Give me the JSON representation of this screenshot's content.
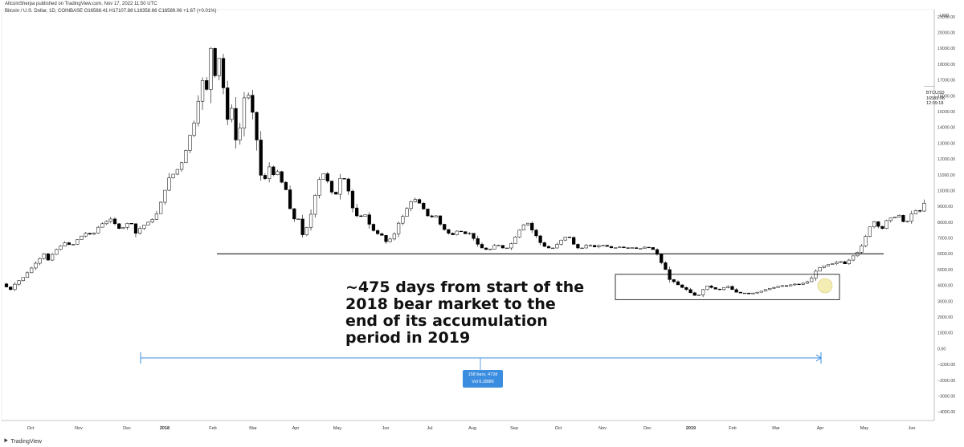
{
  "header": {
    "publisher": "AltcoinSherpa published on TradingView.com, Nov 17, 2022 11:50 UTC",
    "symbol_line": "Bitcoin / U.S. Dollar, 1D, COINBASE  O16588.41  H17107.88  L16358.66  C16589.06  +1.67 (+0.01%)"
  },
  "annotation": {
    "lines": [
      "~475 days from start of the",
      "2018 bear market to the",
      "end of its accumulation",
      "period in 2019"
    ]
  },
  "range_label": {
    "bars": "158 bars, 472d",
    "vol": "Vol 6.288M"
  },
  "price_tag": {
    "symbol": "BTCUSD",
    "price": "16589.06",
    "time": "12:09:18"
  },
  "footer": {
    "brand": "TradingView"
  },
  "colors": {
    "up": "#ffffff",
    "down": "#000000",
    "range": "#3b8de0",
    "highlight": "#f3eba6"
  },
  "chart_data": {
    "type": "candlestick",
    "title": "Bitcoin / U.S. Dollar, 1D, COINBASE",
    "currency_label": "USD",
    "ylim": [
      -4500,
      21500
    ],
    "y_ticks": [
      "21000.00",
      "20000.00",
      "19000.00",
      "18000.00",
      "17000.00",
      "16000.00",
      "15000.00",
      "14000.00",
      "13000.00",
      "12000.00",
      "11000.00",
      "10000.00",
      "9000.00",
      "8000.00",
      "7000.00",
      "6000.00",
      "5000.00",
      "4000.00",
      "3000.00",
      "2000.00",
      "1000.00",
      "0.00",
      "−1000.00",
      "−2000.00",
      "−3000.00",
      "−4000.00"
    ],
    "x_labels": [
      "Oct",
      "Nov",
      "Dec",
      "2018",
      "Feb",
      "Mar",
      "Apr",
      "May",
      "Jun",
      "Jul",
      "Aug",
      "Sep",
      "Oct",
      "Nov",
      "Dec",
      "2019",
      "Feb",
      "Mar",
      "Apr",
      "May",
      "Jun"
    ],
    "price_path": [
      [
        0,
        4100
      ],
      [
        3,
        3900
      ],
      [
        5,
        3600
      ],
      [
        8,
        4000
      ],
      [
        12,
        4300
      ],
      [
        15,
        4500
      ],
      [
        20,
        5000
      ],
      [
        25,
        5500
      ],
      [
        30,
        6000
      ],
      [
        33,
        5600
      ],
      [
        38,
        6200
      ],
      [
        45,
        6700
      ],
      [
        50,
        6500
      ],
      [
        55,
        7000
      ],
      [
        60,
        7300
      ],
      [
        65,
        7200
      ],
      [
        70,
        7800
      ],
      [
        78,
        8200
      ],
      [
        85,
        7500
      ],
      [
        92,
        8100
      ],
      [
        96,
        7300
      ],
      [
        100,
        7700
      ],
      [
        105,
        8000
      ],
      [
        110,
        8300
      ],
      [
        115,
        9500
      ],
      [
        120,
        10800
      ],
      [
        125,
        11200
      ],
      [
        130,
        11900
      ],
      [
        135,
        13500
      ],
      [
        140,
        14800
      ],
      [
        142,
        16500
      ],
      [
        145,
        17200
      ],
      [
        148,
        16000
      ],
      [
        150,
        19000
      ],
      [
        152,
        16500
      ],
      [
        155,
        18800
      ],
      [
        158,
        17500
      ],
      [
        160,
        15500
      ],
      [
        163,
        14000
      ],
      [
        166,
        15800
      ],
      [
        168,
        13200
      ],
      [
        172,
        14200
      ],
      [
        175,
        16700
      ],
      [
        178,
        15700
      ],
      [
        182,
        14200
      ],
      [
        185,
        11200
      ],
      [
        188,
        10500
      ],
      [
        192,
        11500
      ],
      [
        195,
        11000
      ],
      [
        198,
        11200
      ],
      [
        202,
        10300
      ],
      [
        206,
        9800
      ],
      [
        208,
        7900
      ],
      [
        212,
        8500
      ],
      [
        215,
        7600
      ],
      [
        217,
        6800
      ],
      [
        220,
        8100
      ],
      [
        223,
        8700
      ],
      [
        226,
        10200
      ],
      [
        230,
        11200
      ],
      [
        233,
        10800
      ],
      [
        236,
        10200
      ],
      [
        239,
        9300
      ],
      [
        242,
        10700
      ],
      [
        245,
        10900
      ],
      [
        248,
        10400
      ],
      [
        251,
        9100
      ],
      [
        254,
        8500
      ],
      [
        257,
        8200
      ],
      [
        260,
        8700
      ],
      [
        263,
        8000
      ],
      [
        266,
        7600
      ],
      [
        269,
        7200
      ],
      [
        272,
        7400
      ],
      [
        275,
        6700
      ],
      [
        278,
        6900
      ],
      [
        281,
        7000
      ],
      [
        284,
        7800
      ],
      [
        287,
        8200
      ],
      [
        290,
        8700
      ],
      [
        293,
        9200
      ],
      [
        296,
        9500
      ],
      [
        299,
        9300
      ],
      [
        302,
        9000
      ],
      [
        305,
        8500
      ],
      [
        308,
        8200
      ],
      [
        311,
        8600
      ],
      [
        314,
        8000
      ],
      [
        317,
        7600
      ],
      [
        320,
        7400
      ],
      [
        323,
        7100
      ],
      [
        326,
        7400
      ],
      [
        329,
        7500
      ],
      [
        332,
        7200
      ],
      [
        335,
        7400
      ],
      [
        338,
        7100
      ],
      [
        341,
        6700
      ],
      [
        344,
        6400
      ],
      [
        347,
        6300
      ],
      [
        350,
        6200
      ],
      [
        353,
        6500
      ],
      [
        356,
        6600
      ],
      [
        359,
        6400
      ],
      [
        362,
        6300
      ],
      [
        365,
        6500
      ],
      [
        368,
        6900
      ],
      [
        371,
        7400
      ],
      [
        374,
        7700
      ],
      [
        377,
        8100
      ],
      [
        380,
        7600
      ],
      [
        383,
        7300
      ],
      [
        386,
        6800
      ],
      [
        389,
        6500
      ],
      [
        392,
        6400
      ],
      [
        395,
        6300
      ],
      [
        398,
        6500
      ],
      [
        401,
        6800
      ],
      [
        404,
        7000
      ],
      [
        407,
        7200
      ],
      [
        410,
        6700
      ],
      [
        413,
        6400
      ],
      [
        416,
        6300
      ],
      [
        419,
        6500
      ],
      [
        422,
        6600
      ],
      [
        425,
        6400
      ],
      [
        428,
        6500
      ],
      [
        431,
        6550
      ],
      [
        434,
        6500
      ],
      [
        437,
        6400
      ],
      [
        440,
        6350
      ],
      [
        443,
        6450
      ],
      [
        446,
        6400
      ],
      [
        449,
        6350
      ],
      [
        452,
        6400
      ],
      [
        455,
        6350
      ],
      [
        458,
        6300
      ],
      [
        461,
        6400
      ],
      [
        464,
        6450
      ],
      [
        467,
        6300
      ],
      [
        470,
        6200
      ],
      [
        473,
        5500
      ],
      [
        476,
        5300
      ],
      [
        479,
        4400
      ],
      [
        482,
        4300
      ],
      [
        485,
        4100
      ],
      [
        488,
        3900
      ],
      [
        491,
        3800
      ],
      [
        494,
        3600
      ],
      [
        497,
        3400
      ],
      [
        500,
        3300
      ],
      [
        503,
        3600
      ],
      [
        506,
        4000
      ],
      [
        509,
        3900
      ],
      [
        512,
        3800
      ],
      [
        515,
        3700
      ],
      [
        518,
        3800
      ],
      [
        521,
        4000
      ],
      [
        524,
        3800
      ],
      [
        527,
        3600
      ],
      [
        530,
        3500
      ],
      [
        533,
        3550
      ],
      [
        536,
        3450
      ],
      [
        539,
        3500
      ],
      [
        542,
        3550
      ],
      [
        545,
        3600
      ],
      [
        548,
        3700
      ],
      [
        551,
        3800
      ],
      [
        554,
        3850
      ],
      [
        557,
        3900
      ],
      [
        560,
        4000
      ],
      [
        563,
        3950
      ],
      [
        566,
        4000
      ],
      [
        569,
        4100
      ],
      [
        572,
        4050
      ],
      [
        575,
        4100
      ],
      [
        578,
        4200
      ],
      [
        581,
        4300
      ],
      [
        584,
        4800
      ],
      [
        587,
        5100
      ],
      [
        590,
        5200
      ],
      [
        593,
        5300
      ],
      [
        596,
        5350
      ],
      [
        599,
        5400
      ],
      [
        602,
        5600
      ],
      [
        605,
        5300
      ],
      [
        608,
        5500
      ],
      [
        611,
        5800
      ],
      [
        614,
        6000
      ],
      [
        617,
        6300
      ],
      [
        620,
        6900
      ],
      [
        623,
        7500
      ],
      [
        626,
        8100
      ],
      [
        629,
        7900
      ],
      [
        632,
        7400
      ],
      [
        635,
        8000
      ],
      [
        638,
        8300
      ],
      [
        641,
        8200
      ],
      [
        644,
        8600
      ],
      [
        647,
        8100
      ],
      [
        650,
        7900
      ],
      [
        653,
        8400
      ],
      [
        656,
        8800
      ],
      [
        659,
        8600
      ],
      [
        662,
        8900
      ],
      [
        664,
        9500
      ]
    ],
    "reference_line": {
      "price": 6000,
      "from_label": "Feb",
      "to_label": "May"
    },
    "accumulation_box": {
      "price_low": 3100,
      "price_high": 4700,
      "from_label": "Nov",
      "to_label": "Apr"
    },
    "range_measure": {
      "bars": 158,
      "days": 472,
      "volume": "6.288M"
    }
  }
}
